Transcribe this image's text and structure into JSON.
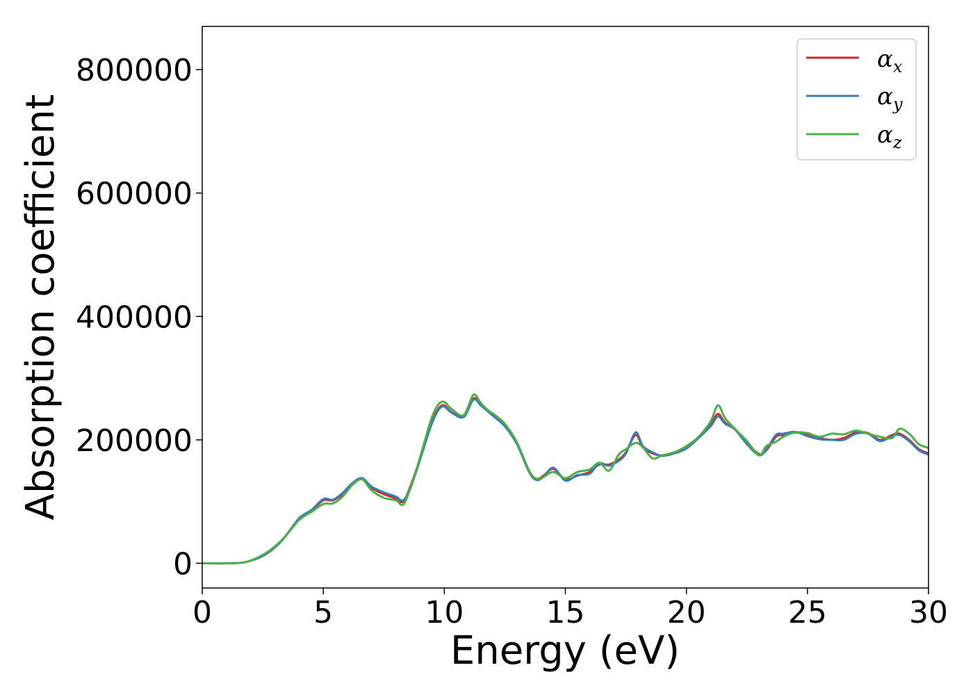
{
  "chart_data": {
    "type": "line",
    "title": "",
    "xlabel": "Energy (eV)",
    "ylabel": "Absorption coefficient",
    "xlim": [
      0,
      30
    ],
    "ylim": [
      -40000,
      870000
    ],
    "xticks": [
      0,
      5,
      10,
      15,
      20,
      25,
      30
    ],
    "yticks": [
      0,
      200000,
      400000,
      600000,
      800000
    ],
    "grid": false,
    "legend_position": "top-right",
    "series": [
      {
        "name": "α",
        "subscript": "x",
        "color": "#d62728",
        "x": [
          0,
          1,
          1.8,
          2.6,
          3.3,
          4.0,
          4.5,
          5.0,
          5.4,
          5.8,
          6.2,
          6.6,
          7.0,
          7.5,
          8.0,
          8.3,
          8.6,
          9.0,
          9.5,
          9.9,
          10.3,
          10.8,
          11.2,
          11.5,
          11.8,
          12.1,
          12.5,
          13.0,
          13.5,
          13.8,
          14.1,
          14.5,
          15.0,
          15.5,
          16.0,
          16.4,
          16.8,
          17.2,
          17.5,
          17.9,
          18.2,
          18.6,
          19.0,
          19.5,
          20.0,
          20.5,
          21.0,
          21.3,
          21.6,
          22.0,
          22.5,
          23.0,
          23.3,
          23.7,
          24.0,
          24.5,
          25.0,
          25.5,
          26.0,
          26.5,
          27.0,
          27.5,
          28.0,
          28.5,
          28.8,
          29.2,
          29.6,
          30.0
        ],
        "y": [
          0,
          0,
          2000,
          15000,
          38000,
          72000,
          85000,
          102000,
          102000,
          112000,
          128000,
          138000,
          122000,
          112000,
          105000,
          100000,
          125000,
          170000,
          230000,
          256000,
          245000,
          238000,
          267000,
          258000,
          248000,
          238000,
          225000,
          195000,
          150000,
          137000,
          142000,
          153000,
          136000,
          142000,
          148000,
          160000,
          160000,
          168000,
          180000,
          208000,
          188000,
          178000,
          175000,
          180000,
          188000,
          205000,
          225000,
          242000,
          228000,
          218000,
          195000,
          177000,
          183000,
          205000,
          208000,
          212000,
          208000,
          203000,
          200000,
          203000,
          212000,
          211000,
          200000,
          208000,
          210000,
          200000,
          185000,
          178000
        ]
      },
      {
        "name": "α",
        "subscript": "y",
        "color": "#3a7cb8",
        "x": [
          0,
          1,
          1.8,
          2.6,
          3.3,
          4.0,
          4.5,
          5.0,
          5.4,
          5.8,
          6.2,
          6.6,
          7.0,
          7.5,
          8.0,
          8.3,
          8.6,
          9.0,
          9.5,
          9.9,
          10.3,
          10.8,
          11.2,
          11.5,
          11.8,
          12.1,
          12.5,
          13.0,
          13.5,
          13.8,
          14.1,
          14.5,
          15.0,
          15.5,
          16.0,
          16.4,
          16.8,
          17.2,
          17.5,
          17.9,
          18.2,
          18.6,
          19.0,
          19.5,
          20.0,
          20.5,
          21.0,
          21.3,
          21.6,
          22.0,
          22.5,
          23.0,
          23.3,
          23.7,
          24.0,
          24.5,
          25.0,
          25.5,
          26.0,
          26.5,
          27.0,
          27.5,
          28.0,
          28.5,
          28.8,
          29.2,
          29.6,
          30.0
        ],
        "y": [
          0,
          0,
          2000,
          14000,
          37000,
          73000,
          86000,
          104000,
          103000,
          114000,
          130000,
          138000,
          124000,
          115000,
          108000,
          102000,
          122000,
          168000,
          228000,
          254000,
          244000,
          237000,
          265000,
          256000,
          246000,
          236000,
          222000,
          193000,
          148000,
          135000,
          140000,
          155000,
          134000,
          143000,
          145000,
          162000,
          158000,
          166000,
          178000,
          212000,
          190000,
          180000,
          174000,
          178000,
          186000,
          203000,
          222000,
          238000,
          226000,
          217000,
          193000,
          175000,
          185000,
          208000,
          210000,
          213000,
          206000,
          201000,
          200000,
          200000,
          210000,
          210000,
          198000,
          206000,
          208000,
          198000,
          183000,
          176000
        ]
      },
      {
        "name": "α",
        "subscript": "z",
        "color": "#4daf4a",
        "x": [
          0,
          1,
          1.8,
          2.6,
          3.3,
          4.0,
          4.5,
          5.0,
          5.4,
          5.8,
          6.2,
          6.6,
          7.0,
          7.5,
          8.0,
          8.3,
          8.6,
          9.0,
          9.5,
          9.9,
          10.3,
          10.8,
          11.2,
          11.5,
          11.8,
          12.1,
          12.5,
          13.0,
          13.5,
          13.8,
          14.1,
          14.5,
          15.0,
          15.5,
          16.0,
          16.4,
          16.8,
          17.2,
          17.5,
          17.9,
          18.2,
          18.6,
          19.0,
          19.5,
          20.0,
          20.5,
          21.0,
          21.3,
          21.6,
          22.0,
          22.5,
          23.0,
          23.3,
          23.7,
          24.0,
          24.5,
          25.0,
          25.5,
          26.0,
          26.5,
          27.0,
          27.5,
          28.0,
          28.5,
          28.8,
          29.2,
          29.6,
          30.0
        ],
        "y": [
          0,
          0,
          2000,
          16000,
          38000,
          70000,
          83000,
          96000,
          97000,
          108000,
          127000,
          136000,
          118000,
          106000,
          102000,
          95000,
          122000,
          172000,
          238000,
          262000,
          250000,
          240000,
          273000,
          260000,
          248000,
          240000,
          226000,
          196000,
          150000,
          137000,
          140000,
          148000,
          138000,
          148000,
          152000,
          163000,
          150000,
          176000,
          185000,
          195000,
          188000,
          170000,
          175000,
          180000,
          190000,
          205000,
          230000,
          256000,
          235000,
          218000,
          198000,
          175000,
          190000,
          197000,
          205000,
          212000,
          211000,
          205000,
          210000,
          209000,
          215000,
          210000,
          205000,
          203000,
          218000,
          210000,
          193000,
          187000
        ]
      }
    ]
  }
}
